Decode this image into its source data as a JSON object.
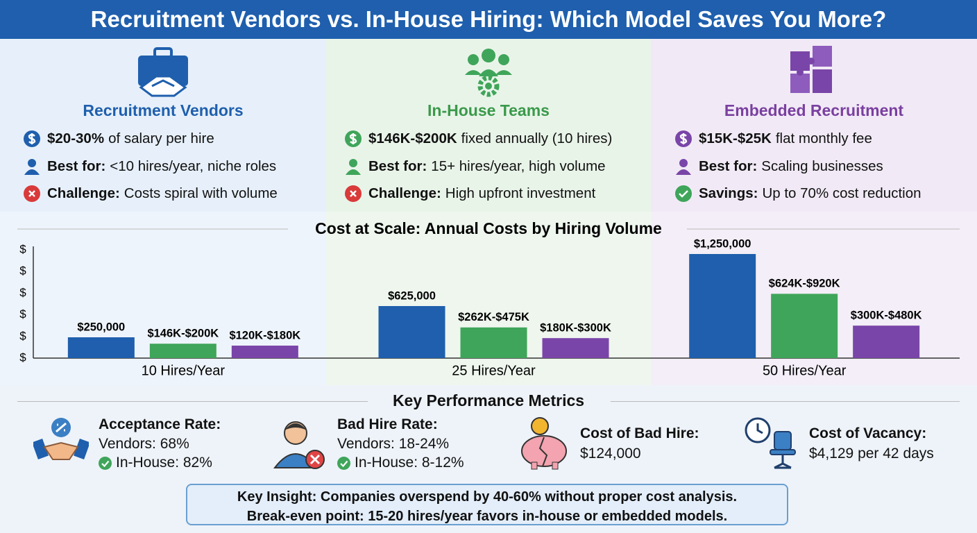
{
  "header": {
    "title": "Recruitment Vendors vs. In-House Hiring: Which Model Saves You More?"
  },
  "models": [
    {
      "title": "Recruitment Vendors",
      "rows": [
        {
          "bold": "$20-30%",
          "text": "of salary per hire"
        },
        {
          "bold": "Best for:",
          "text": "<10 hires/year, niche roles"
        },
        {
          "bold": "Challenge:",
          "text": "Costs spiral with volume"
        }
      ]
    },
    {
      "title": "In-House Teams",
      "rows": [
        {
          "bold": "$146K-$200K",
          "text": "fixed annually (10 hires)"
        },
        {
          "bold": "Best for:",
          "text": "15+ hires/year, high volume"
        },
        {
          "bold": "Challenge:",
          "text": "High upfront investment"
        }
      ]
    },
    {
      "title": "Embedded Recruitment",
      "rows": [
        {
          "bold": "$15K-$25K",
          "text": "flat monthly fee"
        },
        {
          "bold": "Best for:",
          "text": "Scaling businesses"
        },
        {
          "bold": "Savings:",
          "text": "Up to 70% cost reduction"
        }
      ]
    }
  ],
  "chart_data": {
    "type": "bar",
    "title": "Cost at Scale: Annual Costs by Hiring Volume",
    "categories": [
      "10 Hires/Year",
      "25 Hires/Year",
      "50 Hires/Year"
    ],
    "series": [
      {
        "color": "#1f5fad",
        "values": [
          250000,
          625000,
          1250000
        ],
        "value_labels": [
          "$250,000",
          "$625,000",
          "$1,250,000"
        ]
      },
      {
        "color": "#3fa55a",
        "values": [
          173000,
          368500,
          772000
        ],
        "value_labels": [
          "$146K-$200K",
          "$262K-$475K",
          "$624K-$920K"
        ]
      },
      {
        "color": "#7a45a8",
        "values": [
          150000,
          240000,
          390000
        ],
        "value_labels": [
          "$120K-$180K",
          "$180K-$300K",
          "$300K-$480K"
        ]
      }
    ],
    "ylim": [
      0,
      1300000
    ],
    "yticks": [
      {
        "value": 0,
        "label": "$"
      },
      {
        "value": 260000,
        "label": "$"
      },
      {
        "value": 520000,
        "label": "$"
      },
      {
        "value": 780000,
        "label": "$"
      },
      {
        "value": 1040000,
        "label": "$"
      },
      {
        "value": 1300000,
        "label": "$"
      }
    ]
  },
  "metrics": {
    "title": "Key Performance Metrics",
    "items": [
      {
        "title": "Acceptance Rate:",
        "lines": [
          "Vendors: 68%",
          "In-House: 82%"
        ]
      },
      {
        "title": "Bad Hire Rate:",
        "lines": [
          "Vendors: 18-24%",
          "In-House: 8-12%"
        ]
      },
      {
        "title": "Cost of Bad Hire:",
        "lines": [
          "$124,000"
        ]
      },
      {
        "title": "Cost of Vacancy:",
        "lines": [
          "$4,129 per 42 days"
        ]
      }
    ]
  },
  "insight": {
    "lines": [
      "Key Insight: Companies overspend by 40-60% without proper cost analysis.",
      "Break-even point: 15-20 hires/year favors in-house or embedded models."
    ]
  }
}
